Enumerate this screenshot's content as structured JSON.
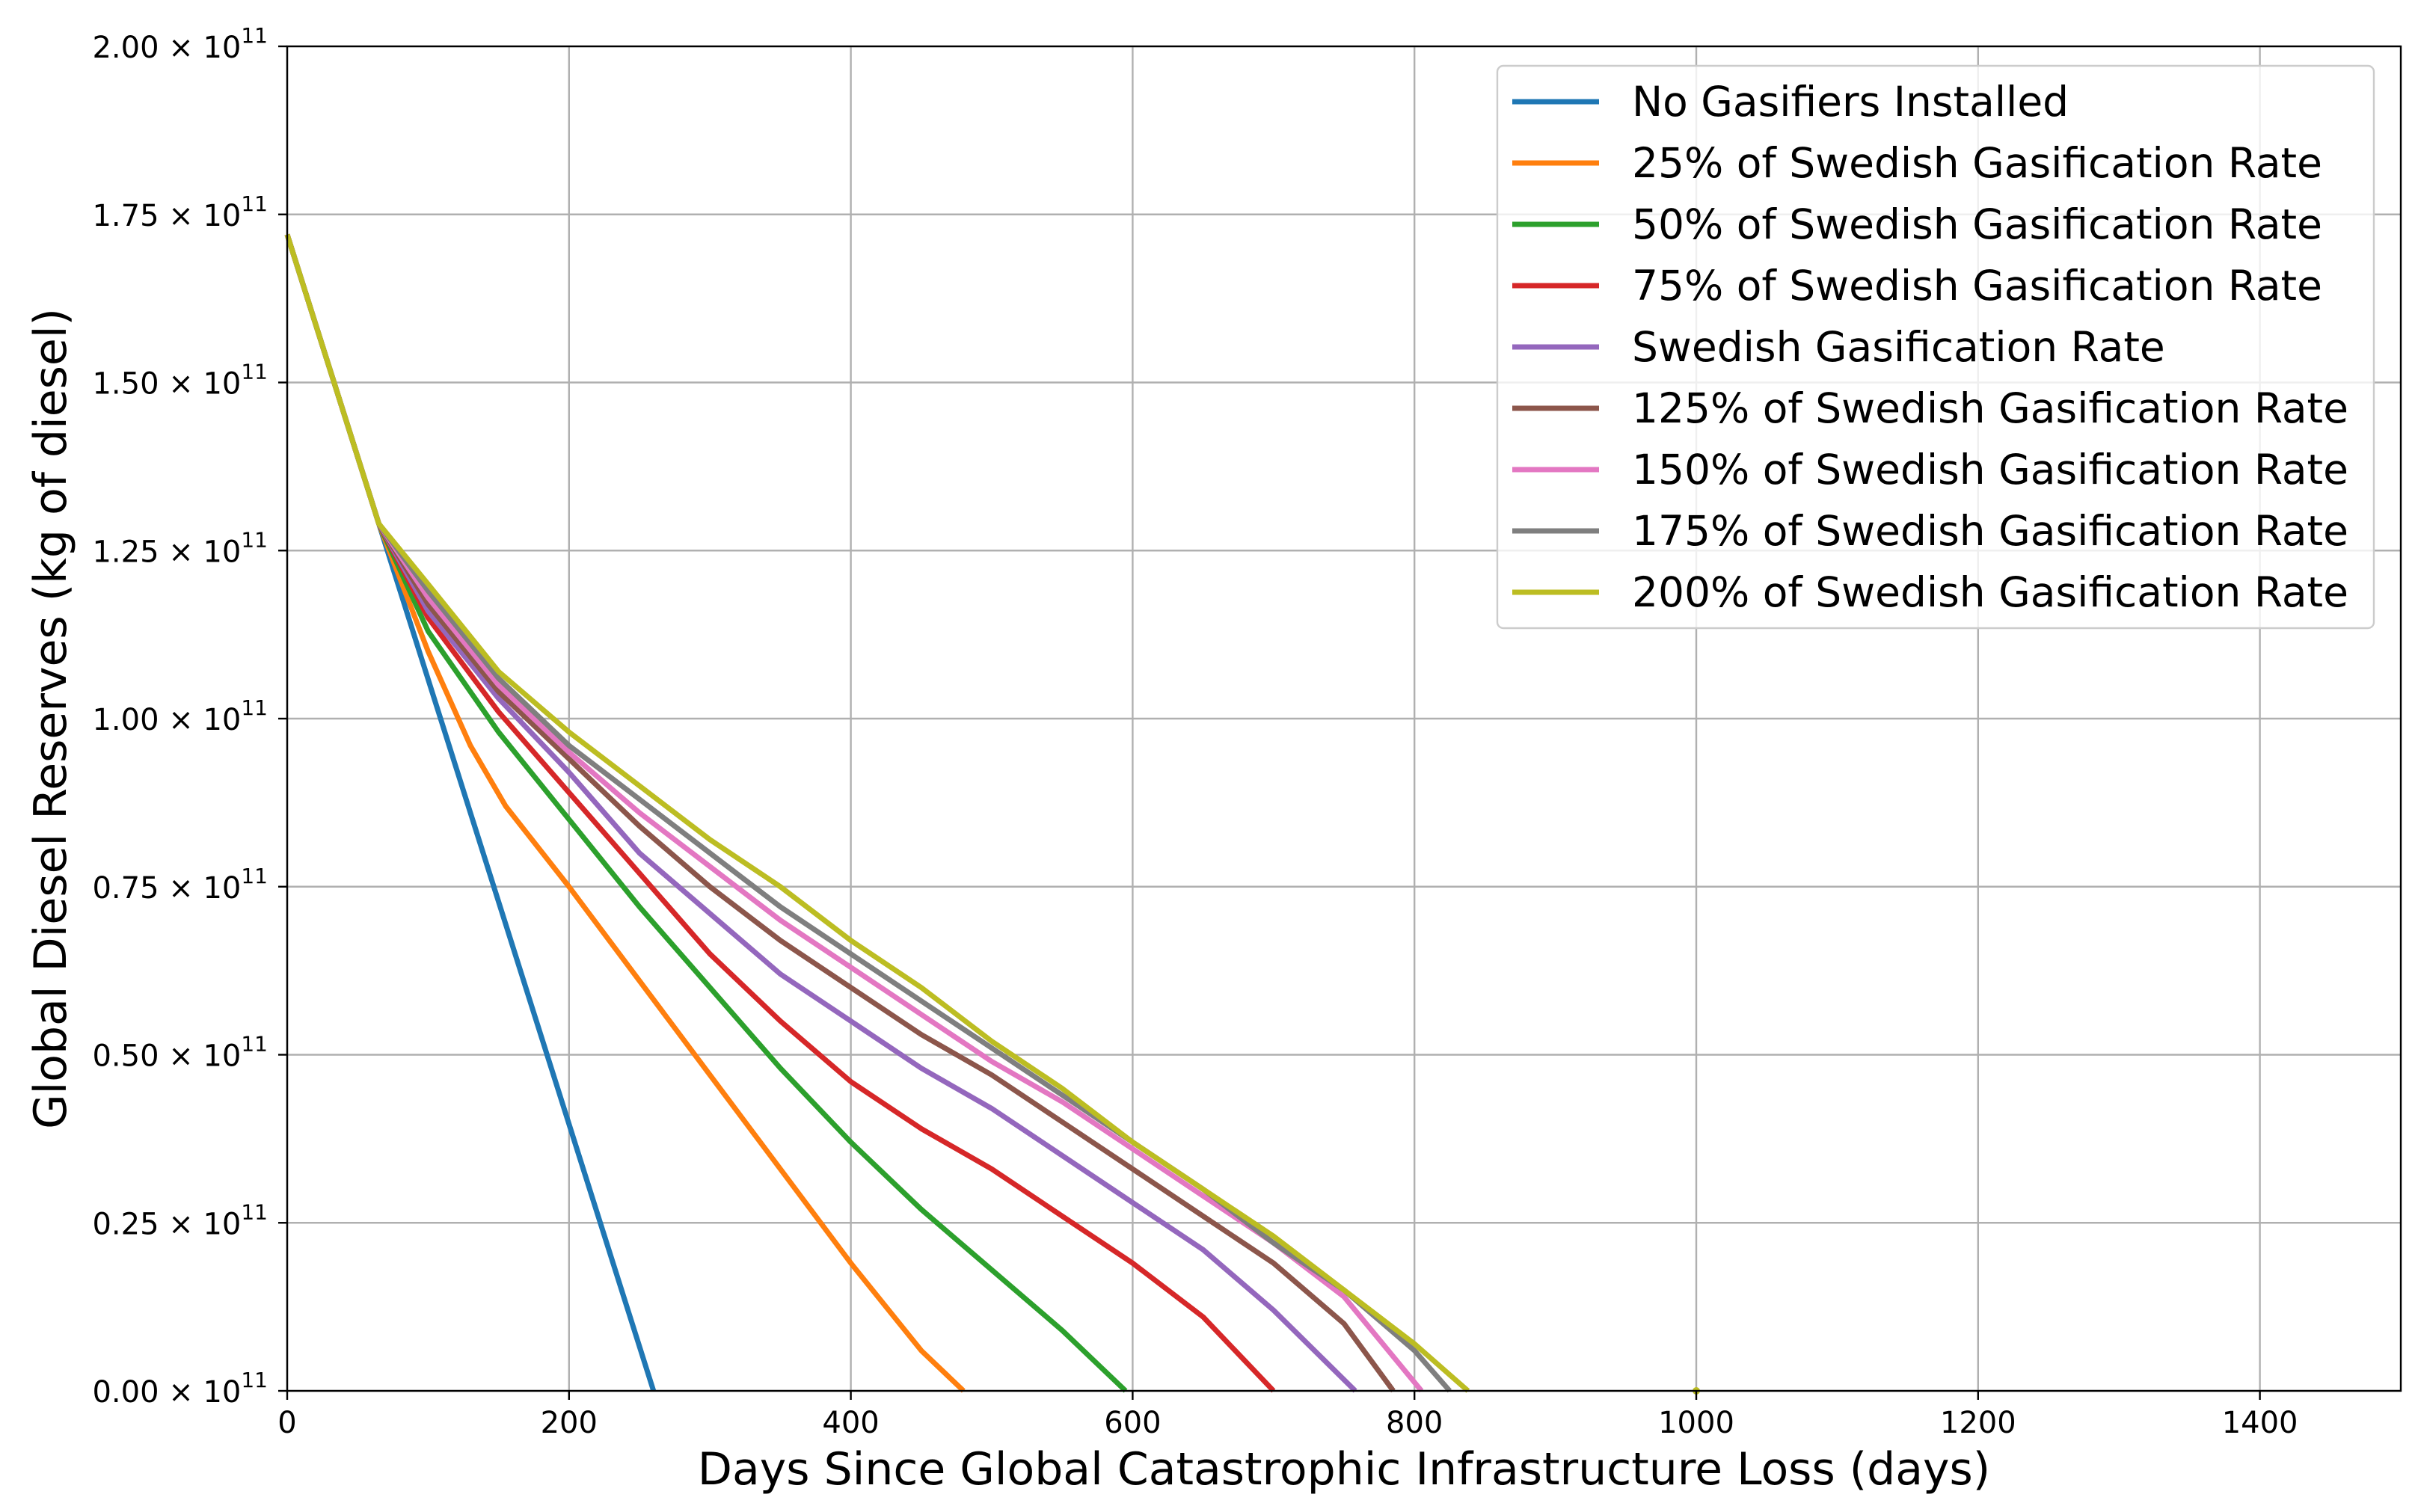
{
  "chart_data": {
    "type": "line",
    "xlabel": "Days Since Global Catastrophic Infrastructure Loss (days)",
    "ylabel": "Global Diesel Reserves (kg of diesel)",
    "xlim": [
      0,
      1500
    ],
    "ylim": [
      0,
      200000000000
    ],
    "grid": true,
    "legend_position": "top-right",
    "x_ticks": [
      {
        "value": 0,
        "label": "0"
      },
      {
        "value": 200,
        "label": "200"
      },
      {
        "value": 400,
        "label": "400"
      },
      {
        "value": 600,
        "label": "600"
      },
      {
        "value": 800,
        "label": "800"
      },
      {
        "value": 1000,
        "label": "1000"
      },
      {
        "value": 1200,
        "label": "1200"
      },
      {
        "value": 1400,
        "label": "1400"
      }
    ],
    "y_ticks": [
      {
        "value": 0,
        "label": "0.00",
        "exp_base": "× 10",
        "exp": "11"
      },
      {
        "value": 25000000000,
        "label": "0.25",
        "exp_base": "× 10",
        "exp": "11"
      },
      {
        "value": 50000000000,
        "label": "0.50",
        "exp_base": "× 10",
        "exp": "11"
      },
      {
        "value": 75000000000,
        "label": "0.75",
        "exp_base": "× 10",
        "exp": "11"
      },
      {
        "value": 100000000000,
        "label": "1.00",
        "exp_base": "× 10",
        "exp": "11"
      },
      {
        "value": 125000000000,
        "label": "1.25",
        "exp_base": "× 10",
        "exp": "11"
      },
      {
        "value": 150000000000,
        "label": "1.50",
        "exp_base": "× 10",
        "exp": "11"
      },
      {
        "value": 175000000000,
        "label": "1.75",
        "exp_base": "× 10",
        "exp": "11"
      },
      {
        "value": 200000000000,
        "label": "2.00",
        "exp_base": "× 10",
        "exp": "11"
      }
    ],
    "series": [
      {
        "name": "No Gasifiers Installed",
        "color": "#1f77b4",
        "x": [
          0,
          65,
          260
        ],
        "y": [
          172000000000,
          129000000000,
          0
        ]
      },
      {
        "name": "25% of Swedish Gasification Rate",
        "color": "#ff7f0e",
        "x": [
          0,
          65,
          100,
          130,
          155,
          200,
          250,
          300,
          350,
          400,
          450,
          480
        ],
        "y": [
          172000000000,
          129000000000,
          110000000000,
          96000000000,
          87000000000,
          75000000000,
          61000000000,
          47000000000,
          33000000000,
          19000000000,
          6000000000,
          0
        ]
      },
      {
        "name": "50% of Swedish Gasification Rate",
        "color": "#2ca02c",
        "x": [
          0,
          65,
          100,
          150,
          200,
          250,
          300,
          350,
          400,
          450,
          500,
          550,
          595
        ],
        "y": [
          172000000000,
          129000000000,
          113000000000,
          98000000000,
          85000000000,
          72000000000,
          60000000000,
          48000000000,
          37000000000,
          27000000000,
          18000000000,
          9000000000,
          0
        ]
      },
      {
        "name": "75% of Swedish Gasification Rate",
        "color": "#d62728",
        "x": [
          0,
          65,
          100,
          150,
          200,
          250,
          300,
          350,
          400,
          450,
          500,
          550,
          600,
          650,
          700
        ],
        "y": [
          172000000000,
          129000000000,
          115000000000,
          101000000000,
          89000000000,
          77000000000,
          65000000000,
          55000000000,
          46000000000,
          39000000000,
          33000000000,
          26000000000,
          19000000000,
          11000000000,
          0
        ]
      },
      {
        "name": "Swedish Gasification Rate",
        "color": "#9467bd",
        "x": [
          0,
          65,
          100,
          150,
          200,
          250,
          300,
          350,
          400,
          450,
          500,
          550,
          600,
          650,
          700,
          758
        ],
        "y": [
          172000000000,
          129000000000,
          116000000000,
          103000000000,
          92000000000,
          80000000000,
          71000000000,
          62000000000,
          55000000000,
          48000000000,
          42000000000,
          35000000000,
          28000000000,
          21000000000,
          12000000000,
          0
        ]
      },
      {
        "name": "125% of Swedish Gasification Rate",
        "color": "#8c564b",
        "x": [
          0,
          65,
          100,
          150,
          200,
          250,
          300,
          350,
          400,
          450,
          500,
          550,
          600,
          650,
          700,
          750,
          785
        ],
        "y": [
          172000000000,
          129000000000,
          117000000000,
          104000000000,
          94000000000,
          84000000000,
          75000000000,
          67000000000,
          60000000000,
          53000000000,
          47000000000,
          40000000000,
          33000000000,
          26000000000,
          19000000000,
          10000000000,
          0
        ]
      },
      {
        "name": "150% of Swedish Gasification Rate",
        "color": "#e377c2",
        "x": [
          0,
          65,
          100,
          150,
          200,
          250,
          300,
          350,
          400,
          450,
          500,
          550,
          600,
          650,
          700,
          750,
          805
        ],
        "y": [
          172000000000,
          129000000000,
          118000000000,
          105000000000,
          95000000000,
          86000000000,
          78000000000,
          70000000000,
          63000000000,
          56000000000,
          49000000000,
          43000000000,
          36000000000,
          29000000000,
          22000000000,
          14000000000,
          0
        ]
      },
      {
        "name": "175% of Swedish Gasification Rate",
        "color": "#7f7f7f",
        "x": [
          0,
          65,
          100,
          150,
          200,
          250,
          300,
          350,
          400,
          450,
          500,
          550,
          600,
          650,
          700,
          750,
          800,
          825
        ],
        "y": [
          172000000000,
          129000000000,
          119000000000,
          106000000000,
          96000000000,
          88000000000,
          80000000000,
          72000000000,
          65000000000,
          58000000000,
          51000000000,
          44000000000,
          37000000000,
          30000000000,
          22000000000,
          15000000000,
          6000000000,
          0
        ]
      },
      {
        "name": "200% of Swedish Gasification Rate",
        "color": "#bcbd22",
        "x": [
          0,
          65,
          100,
          150,
          200,
          250,
          300,
          350,
          400,
          450,
          500,
          550,
          600,
          650,
          700,
          750,
          800,
          838
        ],
        "y": [
          172000000000,
          129000000000,
          120000000000,
          107000000000,
          98000000000,
          90000000000,
          82000000000,
          75000000000,
          67000000000,
          60000000000,
          52000000000,
          45000000000,
          37000000000,
          30000000000,
          23000000000,
          15000000000,
          7000000000,
          0
        ]
      }
    ],
    "markers": [
      {
        "x": 1000,
        "y": 0,
        "color": "#bcbd22"
      }
    ]
  }
}
